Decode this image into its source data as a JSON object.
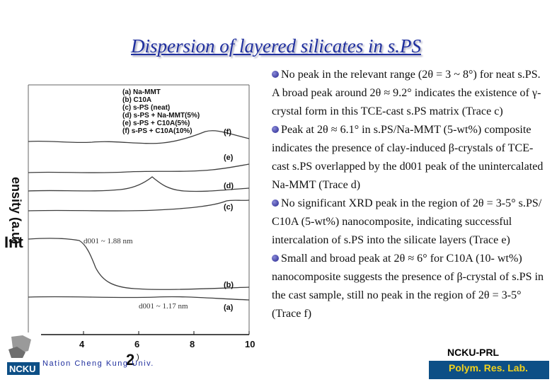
{
  "title": "Dispersion of layered silicates in s.PS",
  "chart_data": {
    "type": "line",
    "x_ticks": [
      "4",
      "6",
      "8",
      "10"
    ],
    "xlim": [
      2,
      10
    ],
    "xlabel": "2",
    "xlabel_suffix": ")",
    "ylabel": "Int",
    "ylabel_rotated": "ensity (a.u)",
    "legend": [
      "(a) Na-MMT",
      "(b) C10A",
      "(c) s-PS (neat)",
      "(d) s-PS + Na-MMT(5%)",
      "(e) s-PS + C10A(5%)",
      "(f) s-PS + C10A(10%)"
    ],
    "trace_labels": [
      "(f)",
      "(e)",
      "(d)",
      "(c)",
      "(b)",
      "(a)"
    ],
    "annotations": [
      "d001 ~ 1.88 nm",
      "d001 ~ 1.17 nm"
    ]
  },
  "bullets": [
    {
      "lead": "No peak in the relevant range (2θ = 3 ~ 8°) for",
      "text": "neat s.PS. A broad peak around 2θ ≈ 9.2° indicates the existence of γ-crystal form in this TCE-cast s.PS matrix (Trace c)"
    },
    {
      "lead": "Peak at 2θ ≈ 6.1° in s.PS/Na-MMT (5-wt%)",
      "text": "composite indicates the presence of clay-induced β-crystals of TCE-cast s.PS overlapped by the d001 peak of the unintercalated Na-MMT (Trace d)"
    },
    {
      "lead": "No significant XRD peak in the region of 2θ =",
      "text": "3-5° s.PS/ C10A (5-wt%) nanocomposite, indicating successful intercalation of s.PS into the silicate layers (Trace e)"
    },
    {
      "lead": "Small and broad peak at 2θ ≈ 6° for C10A (10-",
      "text": "wt%) nanocomposite suggests the presence of β-crystal of s.PS in the cast sample, still no peak in the region of 2θ = 3-5° (Trace f)"
    }
  ],
  "footer": {
    "ncku_prl": "NCKU-PRL",
    "polym_lab": "Polym. Res. Lab.",
    "university": "Nation Cheng Kung Univ.",
    "logo_text": "NCKU"
  },
  "colors": {
    "title": "#1f2f9e",
    "lab_band": "#0d4f86",
    "lab_text": "#f2d21c"
  }
}
